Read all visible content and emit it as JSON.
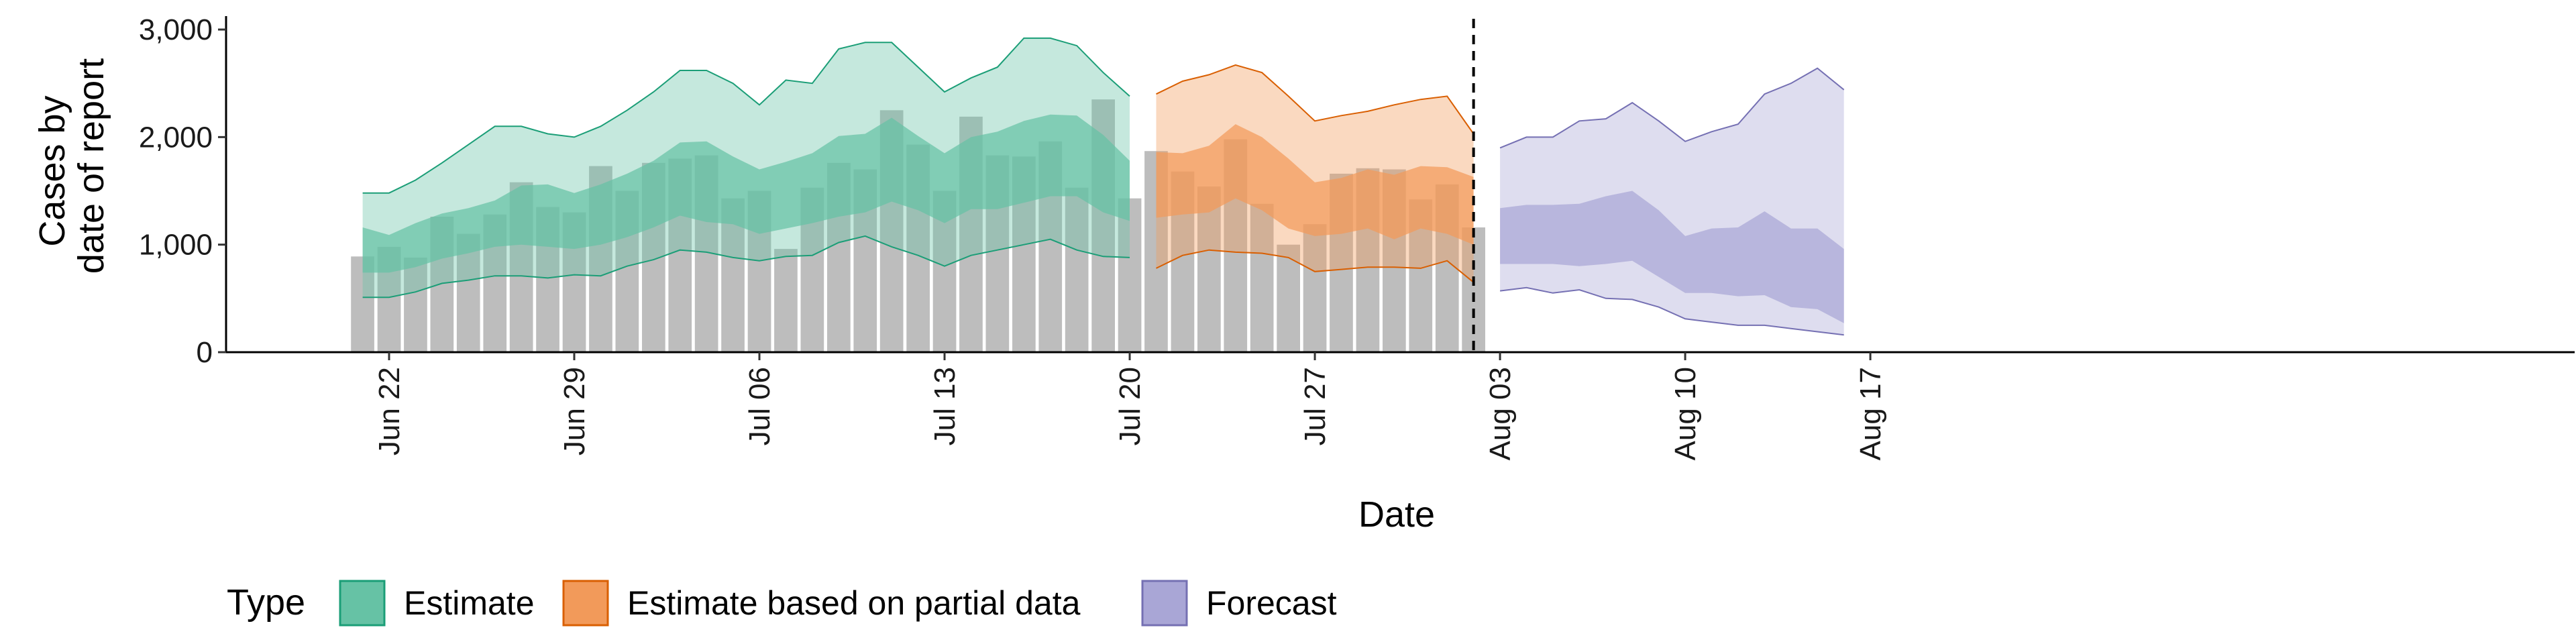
{
  "chart_data": {
    "type": "area",
    "xlabel": "Date",
    "ylabel": [
      "Cases by",
      "date of report"
    ],
    "xlim": [
      "2020-06-16",
      "2020-08-18"
    ],
    "ylim": [
      0,
      3100
    ],
    "y_ticks": [
      {
        "value": 0,
        "label": "0"
      },
      {
        "value": 1000,
        "label": "1,000"
      },
      {
        "value": 2000,
        "label": "2,000"
      },
      {
        "value": 3000,
        "label": "3,000"
      }
    ],
    "x_ticks": [
      {
        "date": "2020-06-22",
        "label": "Jun 22"
      },
      {
        "date": "2020-06-29",
        "label": "Jun 29"
      },
      {
        "date": "2020-07-06",
        "label": "Jul 06"
      },
      {
        "date": "2020-07-13",
        "label": "Jul 13"
      },
      {
        "date": "2020-07-20",
        "label": "Jul 20"
      },
      {
        "date": "2020-07-27",
        "label": "Jul 27"
      },
      {
        "date": "2020-08-03",
        "label": "Aug 03"
      },
      {
        "date": "2020-08-10",
        "label": "Aug 10"
      },
      {
        "date": "2020-08-17",
        "label": "Aug 17"
      }
    ],
    "vline_date": "2020-08-02",
    "legend": {
      "title": "Type",
      "position": "bottom-left",
      "entries": [
        {
          "label": "Estimate",
          "fill": "#66c2a5",
          "stroke": "#1b9e77"
        },
        {
          "label": "Estimate based on partial data",
          "fill": "#f29a5a",
          "stroke": "#d95f02"
        },
        {
          "label": "Forecast",
          "fill": "#a9a6d6",
          "stroke": "#7570b3"
        }
      ]
    },
    "bar_color": "#bdbdbd",
    "bars": {
      "start_date": "2020-06-21",
      "values": [
        890,
        980,
        880,
        1260,
        1100,
        1280,
        1580,
        1350,
        1300,
        1730,
        1500,
        1760,
        1800,
        1830,
        1430,
        1500,
        960,
        1530,
        1760,
        1700,
        2250,
        1930,
        1500,
        2190,
        1830,
        1820,
        1960,
        1530,
        2350,
        1430,
        1870,
        1680,
        1540,
        1980,
        1380,
        1000,
        1190,
        1660,
        1710,
        1700,
        1420,
        1560,
        1160
      ]
    },
    "series": [
      {
        "type_label": "Estimate",
        "start_date": "2020-06-21",
        "outer_lower": [
          510,
          510,
          560,
          640,
          670,
          710,
          710,
          690,
          720,
          710,
          800,
          860,
          950,
          930,
          880,
          850,
          890,
          900,
          1020,
          1080,
          980,
          900,
          800,
          900,
          950,
          1000,
          1050,
          950,
          890,
          880
        ],
        "outer_upper": [
          1480,
          1480,
          1600,
          1760,
          1930,
          2100,
          2100,
          2030,
          2000,
          2100,
          2250,
          2420,
          2620,
          2620,
          2500,
          2300,
          2530,
          2500,
          2820,
          2880,
          2880,
          2650,
          2420,
          2550,
          2650,
          2920,
          2920,
          2850,
          2600,
          2380
        ],
        "inner_lower": [
          740,
          740,
          790,
          870,
          920,
          980,
          1000,
          980,
          960,
          1000,
          1070,
          1160,
          1270,
          1210,
          1190,
          1100,
          1150,
          1200,
          1260,
          1300,
          1400,
          1320,
          1200,
          1330,
          1330,
          1390,
          1450,
          1450,
          1300,
          1220
        ],
        "inner_upper": [
          1160,
          1090,
          1200,
          1290,
          1340,
          1410,
          1550,
          1560,
          1480,
          1560,
          1660,
          1780,
          1950,
          1960,
          1820,
          1700,
          1770,
          1850,
          2010,
          2030,
          2180,
          2010,
          1850,
          2000,
          2050,
          2150,
          2210,
          2200,
          2020,
          1780
        ]
      },
      {
        "type_label": "Estimate based on partial data",
        "start_date": "2020-07-21",
        "outer_lower": [
          780,
          900,
          950,
          930,
          920,
          880,
          750,
          770,
          790,
          790,
          780,
          850,
          650
        ],
        "outer_upper": [
          2400,
          2520,
          2580,
          2670,
          2600,
          2380,
          2150,
          2200,
          2240,
          2300,
          2350,
          2380,
          2030
        ],
        "inner_lower": [
          1250,
          1280,
          1300,
          1430,
          1320,
          1150,
          1080,
          1100,
          1150,
          1050,
          1150,
          1100,
          1000
        ],
        "inner_upper": [
          1860,
          1850,
          1920,
          2120,
          2000,
          1800,
          1580,
          1620,
          1700,
          1650,
          1730,
          1720,
          1630
        ]
      },
      {
        "type_label": "Forecast",
        "start_date": "2020-08-03",
        "outer_lower": [
          570,
          600,
          550,
          580,
          500,
          490,
          420,
          310,
          280,
          250,
          250,
          220,
          190,
          160
        ],
        "outer_upper": [
          1900,
          2000,
          2000,
          2150,
          2170,
          2320,
          2150,
          1960,
          2050,
          2120,
          2400,
          2500,
          2640,
          2440
        ],
        "inner_lower": [
          820,
          820,
          820,
          800,
          820,
          850,
          700,
          550,
          550,
          520,
          530,
          420,
          400,
          270
        ],
        "inner_upper": [
          1340,
          1370,
          1370,
          1380,
          1450,
          1500,
          1320,
          1080,
          1150,
          1160,
          1310,
          1150,
          1150,
          960
        ]
      }
    ]
  }
}
